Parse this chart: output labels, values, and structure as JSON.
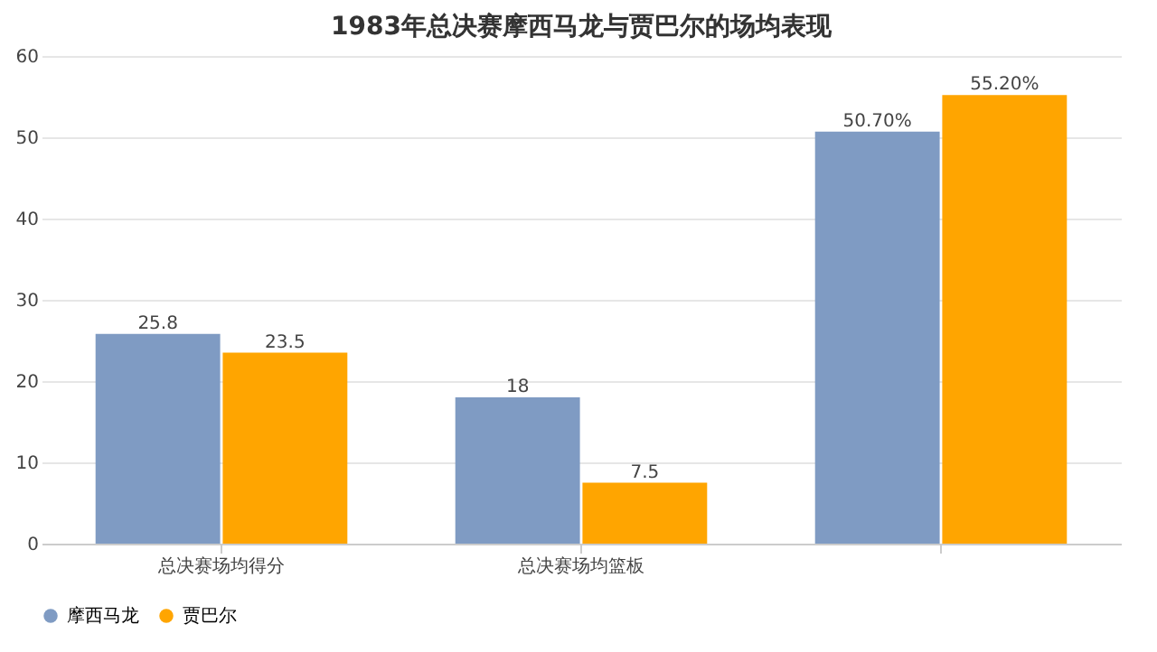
{
  "chart_data": {
    "type": "bar",
    "title": "1983年总决赛摩西马龙与贾巴尔的场均表现",
    "categories": [
      "总决赛场均得分",
      "总决赛场均篮板",
      null
    ],
    "series": [
      {
        "name": "摩西马龙",
        "color": "#7f9bc3",
        "values": [
          25.8,
          18,
          50.7
        ],
        "value_labels": [
          "25.8",
          "18",
          "50.70%"
        ]
      },
      {
        "name": "贾巴尔",
        "color": "#ffa500",
        "values": [
          23.5,
          7.5,
          55.2
        ],
        "value_labels": [
          "23.5",
          "7.5",
          "55.20%"
        ]
      }
    ],
    "ylim": [
      0,
      60
    ],
    "yticks": [
      0,
      10,
      20,
      30,
      40,
      50,
      60
    ],
    "grid": "y",
    "legend": "bottom"
  }
}
